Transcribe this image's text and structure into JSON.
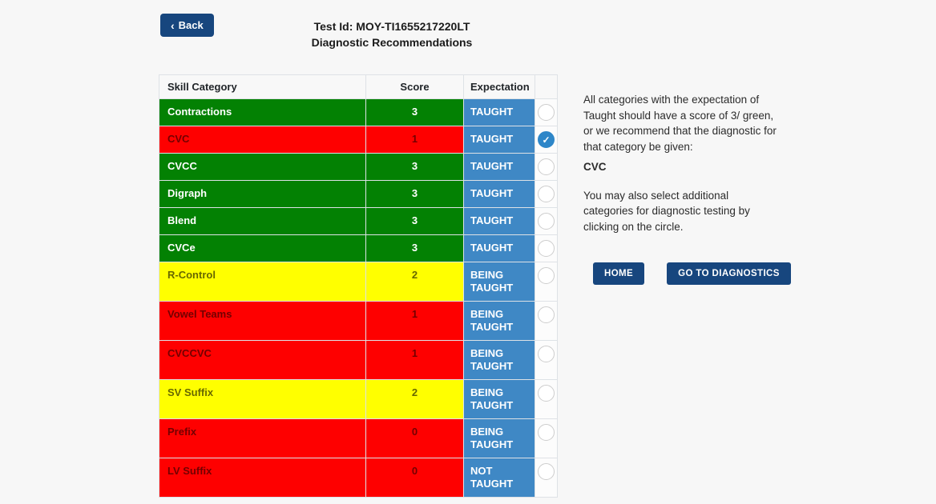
{
  "header": {
    "back_label": "Back",
    "back_chevron": "‹",
    "test_id_line": "Test Id: MOY-TI1655217220LT",
    "subtitle_line": "Diagnostic Recommendations"
  },
  "table": {
    "columns": [
      "Skill Category",
      "Score",
      "Expectation",
      ""
    ],
    "rows": [
      {
        "category": "Contractions",
        "score": "3",
        "expectation": "TAUGHT",
        "status": "green",
        "selected": false
      },
      {
        "category": "CVC",
        "score": "1",
        "expectation": "TAUGHT",
        "status": "red",
        "selected": true
      },
      {
        "category": "CVCC",
        "score": "3",
        "expectation": "TAUGHT",
        "status": "green",
        "selected": false
      },
      {
        "category": "Digraph",
        "score": "3",
        "expectation": "TAUGHT",
        "status": "green",
        "selected": false
      },
      {
        "category": "Blend",
        "score": "3",
        "expectation": "TAUGHT",
        "status": "green",
        "selected": false
      },
      {
        "category": "CVCe",
        "score": "3",
        "expectation": "TAUGHT",
        "status": "green",
        "selected": false
      },
      {
        "category": "R-Control",
        "score": "2",
        "expectation": "BEING TAUGHT",
        "status": "yellow",
        "selected": false
      },
      {
        "category": "Vowel Teams",
        "score": "1",
        "expectation": "BEING TAUGHT",
        "status": "red",
        "selected": false
      },
      {
        "category": "CVCCVC",
        "score": "1",
        "expectation": "BEING TAUGHT",
        "status": "red",
        "selected": false
      },
      {
        "category": "SV Suffix",
        "score": "2",
        "expectation": "BEING TAUGHT",
        "status": "yellow",
        "selected": false
      },
      {
        "category": "Prefix",
        "score": "0",
        "expectation": "BEING TAUGHT",
        "status": "red",
        "selected": false
      },
      {
        "category": "LV Suffix",
        "score": "0",
        "expectation": "NOT TAUGHT",
        "status": "red",
        "selected": false
      }
    ]
  },
  "side_panel": {
    "paragraph1": "All categories with the expectation of Taught should have a score of 3/ green, or we recommend that the diagnostic for that category be given:",
    "highlight": "CVC",
    "paragraph2": "You may also select additional categories for diagnostic testing by clicking on the circle.",
    "home_label": "HOME",
    "diagnostics_label": "GO TO DIAGNOSTICS"
  },
  "icons": {
    "check": "✓"
  },
  "colors": {
    "navy": "#17467e",
    "green": "#038103",
    "red": "#fe0000",
    "yellow": "#ffff00",
    "expectation_blue": "#3f88c5",
    "check_blue": "#2e86c8",
    "page_background": "#f7f7f7"
  }
}
